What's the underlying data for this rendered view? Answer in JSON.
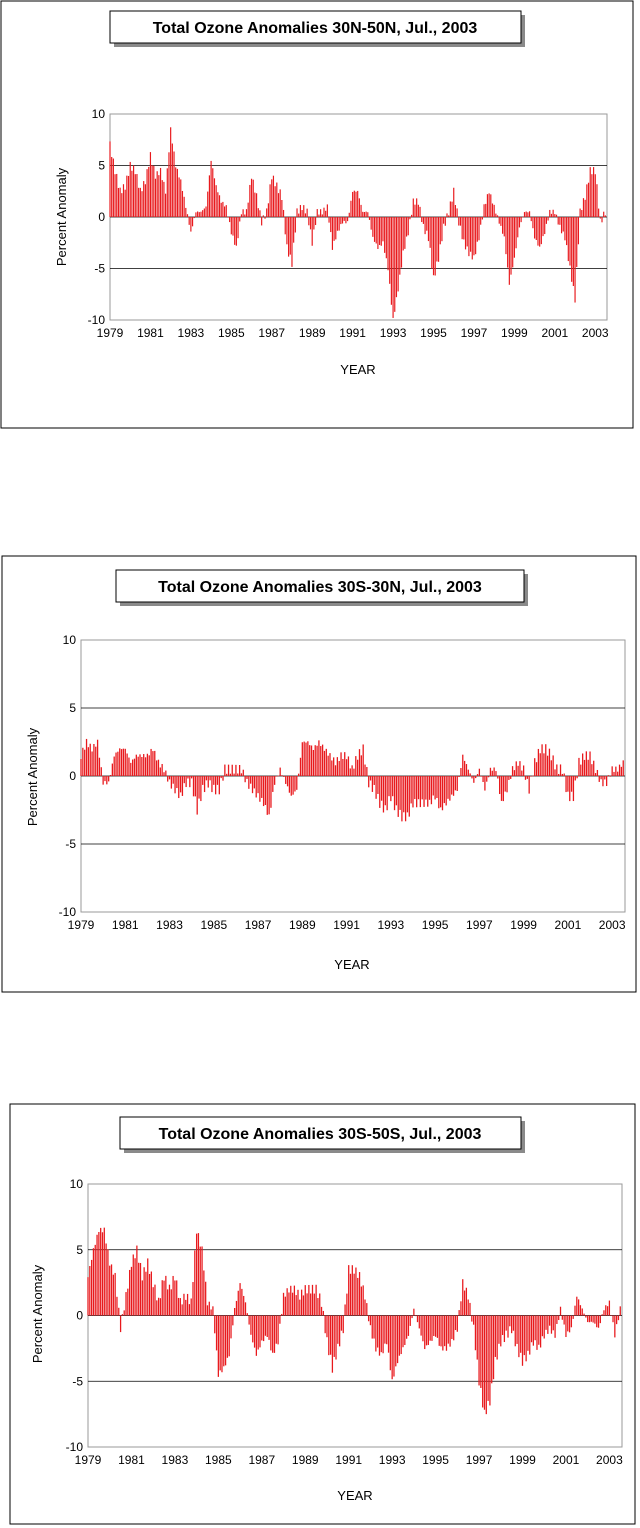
{
  "chart_data": [
    {
      "type": "bar",
      "title": "Total Ozone Anomalies 30N-50N,  Jul., 2003",
      "xlabel": "YEAR",
      "ylabel": "Percent Anomaly",
      "ylim": [
        -10,
        10
      ],
      "yticks": [
        10,
        5,
        0,
        -5,
        -10
      ],
      "xlim": [
        1979.0,
        2003.58
      ],
      "xticks": [
        1979,
        1981,
        1983,
        1985,
        1987,
        1989,
        1991,
        1993,
        1995,
        1997,
        1999,
        2001,
        2003
      ],
      "grid": true,
      "bar_color": "#e8191d",
      "series": [
        {
          "x": [
            1979.0,
            1979.25,
            1979.5,
            1979.75,
            1980.0,
            1980.25,
            1980.5,
            1980.75,
            1981.0,
            1981.25,
            1981.5,
            1981.75,
            1982.0,
            1982.25,
            1982.5,
            1982.75,
            1983.0,
            1983.25,
            1983.5,
            1983.75,
            1984.0,
            1984.25,
            1984.5,
            1984.75,
            1985.0,
            1985.25,
            1985.5,
            1985.75,
            1986.0,
            1986.25,
            1986.5,
            1986.75,
            1987.0,
            1987.25,
            1987.5,
            1987.75,
            1988.0,
            1988.25,
            1988.5,
            1988.75,
            1989.0,
            1989.25,
            1989.5,
            1989.75,
            1990.0,
            1990.25,
            1990.5,
            1990.75,
            1991.0,
            1991.25,
            1991.5,
            1991.75,
            1992.0,
            1992.25,
            1992.5,
            1992.75,
            1993.0,
            1993.25,
            1993.5,
            1993.75,
            1994.0,
            1994.25,
            1994.5,
            1994.75,
            1995.0,
            1995.25,
            1995.5,
            1995.75,
            1996.0,
            1996.25,
            1996.5,
            1996.75,
            1997.0,
            1997.25,
            1997.5,
            1997.75,
            1998.0,
            1998.25,
            1998.5,
            1998.75,
            1999.0,
            1999.25,
            1999.5,
            1999.75,
            2000.0,
            2000.25,
            2000.5,
            2000.75,
            2001.0,
            2001.25,
            2001.5,
            2001.75,
            2002.0,
            2002.25,
            2002.5,
            2002.75,
            2003.0,
            2003.25,
            2003.5
          ],
          "values": [
            7.0,
            4.5,
            2.5,
            3.0,
            5.0,
            4.5,
            2.5,
            3.5,
            6.0,
            4.0,
            4.5,
            2.5,
            8.5,
            5.0,
            3.5,
            1.0,
            -1.5,
            0.5,
            0.5,
            1.0,
            5.5,
            3.0,
            1.5,
            1.0,
            -1.5,
            -3.0,
            0.5,
            0.5,
            4.0,
            2.0,
            -0.5,
            0.5,
            4.0,
            3.0,
            2.0,
            -3.0,
            -4.5,
            0.5,
            1.0,
            0.5,
            -2.5,
            0.5,
            0.5,
            1.0,
            -3.0,
            -1.5,
            -0.5,
            -0.5,
            2.5,
            2.5,
            0.5,
            0.5,
            -2.0,
            -3.0,
            -2.5,
            -5.0,
            -10.0,
            -7.0,
            -3.5,
            -1.5,
            1.5,
            1.5,
            -1.0,
            -2.0,
            -6.0,
            -4.0,
            -1.0,
            0.5,
            2.5,
            -0.5,
            -2.5,
            -3.5,
            -4.0,
            -2.0,
            1.0,
            2.5,
            1.0,
            -0.5,
            -2.0,
            -6.5,
            -4.0,
            -1.0,
            0.5,
            0.5,
            -2.0,
            -3.0,
            -1.5,
            0.5,
            0.5,
            -1.0,
            -2.0,
            -5.0,
            -8.0,
            0.5,
            2.0,
            4.5,
            4.5,
            -0.5,
            0.5
          ]
        }
      ]
    },
    {
      "type": "bar",
      "title": "Total Ozone Anomalies 30S-30N, Jul., 2003",
      "xlabel": "YEAR",
      "ylabel": "Percent Anomaly",
      "ylim": [
        -10,
        10
      ],
      "yticks": [
        10,
        5,
        0,
        -5,
        -10
      ],
      "xlim": [
        1979.0,
        2003.58
      ],
      "xticks": [
        1979,
        1981,
        1983,
        1985,
        1987,
        1989,
        1991,
        1993,
        1995,
        1997,
        1999,
        2001,
        2003
      ],
      "grid": true,
      "bar_color": "#e8191d",
      "series": [
        {
          "x": [
            1979.0,
            1979.25,
            1979.5,
            1979.75,
            1980.0,
            1980.25,
            1980.5,
            1980.75,
            1981.0,
            1981.25,
            1981.5,
            1981.75,
            1982.0,
            1982.25,
            1982.5,
            1982.75,
            1983.0,
            1983.25,
            1983.5,
            1983.75,
            1984.0,
            1984.25,
            1984.5,
            1984.75,
            1985.0,
            1985.25,
            1985.5,
            1985.75,
            1986.0,
            1986.25,
            1986.5,
            1986.75,
            1987.0,
            1987.25,
            1987.5,
            1987.75,
            1988.0,
            1988.25,
            1988.5,
            1988.75,
            1989.0,
            1989.25,
            1989.5,
            1989.75,
            1990.0,
            1990.25,
            1990.5,
            1990.75,
            1991.0,
            1991.25,
            1991.5,
            1991.75,
            1992.0,
            1992.25,
            1992.5,
            1992.75,
            1993.0,
            1993.25,
            1993.5,
            1993.75,
            1994.0,
            1994.25,
            1994.5,
            1994.75,
            1995.0,
            1995.25,
            1995.5,
            1995.75,
            1996.0,
            1996.25,
            1996.5,
            1996.75,
            1997.0,
            1997.25,
            1997.5,
            1997.75,
            1998.0,
            1998.25,
            1998.5,
            1998.75,
            1999.0,
            1999.25,
            1999.5,
            1999.75,
            2000.0,
            2000.25,
            2000.5,
            2000.75,
            2001.0,
            2001.25,
            2001.5,
            2001.75,
            2002.0,
            2002.25,
            2002.5,
            2002.75,
            2003.0,
            2003.25,
            2003.5
          ],
          "values": [
            1.5,
            2.5,
            2.0,
            2.5,
            -0.5,
            -0.5,
            1.5,
            2.0,
            2.0,
            1.0,
            1.5,
            1.5,
            1.5,
            2.0,
            1.0,
            0.5,
            -0.5,
            -1.0,
            -1.5,
            -0.5,
            -0.5,
            -2.5,
            -1.0,
            -0.5,
            -1.0,
            -1.0,
            0.5,
            0.5,
            0.5,
            0.5,
            -0.5,
            -1.0,
            -1.5,
            -2.0,
            -3.0,
            -0.5,
            0.5,
            -0.5,
            -1.5,
            -1.0,
            2.5,
            2.5,
            2.0,
            2.5,
            2.0,
            1.5,
            1.0,
            1.5,
            1.5,
            0.5,
            1.5,
            2.0,
            -0.5,
            -1.0,
            -2.0,
            -2.5,
            -1.5,
            -2.5,
            -3.0,
            -3.0,
            -2.0,
            -2.0,
            -2.0,
            -2.0,
            -1.5,
            -2.5,
            -2.0,
            -1.5,
            -1.0,
            1.5,
            0.5,
            -0.5,
            0.5,
            -1.0,
            0.5,
            0.5,
            -2.0,
            -1.0,
            0.5,
            1.0,
            0.5,
            -1.0,
            1.0,
            2.0,
            2.0,
            1.5,
            0.5,
            0.5,
            -1.5,
            -1.5,
            1.0,
            1.5,
            1.5,
            0.5,
            -0.5,
            -0.5,
            0.5,
            0.5,
            1.0
          ]
        }
      ]
    },
    {
      "type": "bar",
      "title": "Total Ozone Anomalies 30S-50S,  Jul., 2003",
      "xlabel": "YEAR",
      "ylabel": "Percent Anomaly",
      "ylim": [
        -10,
        10
      ],
      "yticks": [
        10,
        5,
        0,
        -5,
        -10
      ],
      "xlim": [
        1979.0,
        2003.58
      ],
      "xticks": [
        1979,
        1981,
        1983,
        1985,
        1987,
        1989,
        1991,
        1993,
        1995,
        1997,
        1999,
        2001,
        2003
      ],
      "grid": true,
      "bar_color": "#e8191d",
      "series": [
        {
          "x": [
            1979.0,
            1979.25,
            1979.5,
            1979.75,
            1980.0,
            1980.25,
            1980.5,
            1980.75,
            1981.0,
            1981.25,
            1981.5,
            1981.75,
            1982.0,
            1982.25,
            1982.5,
            1982.75,
            1983.0,
            1983.25,
            1983.5,
            1983.75,
            1984.0,
            1984.25,
            1984.5,
            1984.75,
            1985.0,
            1985.25,
            1985.5,
            1985.75,
            1986.0,
            1986.25,
            1986.5,
            1986.75,
            1987.0,
            1987.25,
            1987.5,
            1987.75,
            1988.0,
            1988.25,
            1988.5,
            1988.75,
            1989.0,
            1989.25,
            1989.5,
            1989.75,
            1990.0,
            1990.25,
            1990.5,
            1990.75,
            1991.0,
            1991.25,
            1991.5,
            1991.75,
            1992.0,
            1992.25,
            1992.5,
            1992.75,
            1993.0,
            1993.25,
            1993.5,
            1993.75,
            1994.0,
            1994.25,
            1994.5,
            1994.75,
            1995.0,
            1995.25,
            1995.5,
            1995.75,
            1996.0,
            1996.25,
            1996.5,
            1996.75,
            1997.0,
            1997.25,
            1997.5,
            1997.75,
            1998.0,
            1998.25,
            1998.5,
            1998.75,
            1999.0,
            1999.25,
            1999.5,
            1999.75,
            2000.0,
            2000.25,
            2000.5,
            2000.75,
            2001.0,
            2001.25,
            2001.5,
            2001.75,
            2002.0,
            2002.25,
            2002.5,
            2002.75,
            2003.0,
            2003.25,
            2003.5
          ],
          "values": [
            3.0,
            5.0,
            6.5,
            6.5,
            4.0,
            3.0,
            -1.0,
            1.5,
            4.0,
            5.0,
            3.0,
            4.0,
            2.5,
            1.0,
            3.0,
            2.0,
            3.0,
            1.0,
            1.5,
            1.0,
            6.5,
            5.0,
            1.0,
            0.5,
            -4.5,
            -4.0,
            -3.0,
            0.5,
            2.5,
            1.0,
            -1.5,
            -3.0,
            -2.0,
            -1.5,
            -3.0,
            -2.0,
            1.5,
            2.0,
            2.0,
            1.5,
            2.0,
            2.0,
            2.0,
            1.0,
            -2.0,
            -4.0,
            -2.5,
            -1.0,
            3.5,
            3.5,
            3.0,
            1.5,
            -1.0,
            -2.5,
            -3.0,
            -2.0,
            -5.0,
            -3.5,
            -2.5,
            -1.5,
            0.5,
            -1.0,
            -2.5,
            -2.0,
            -1.5,
            -2.5,
            -2.5,
            -2.0,
            -1.0,
            2.5,
            1.5,
            -1.0,
            -5.0,
            -7.5,
            -6.5,
            -3.5,
            -2.0,
            -1.5,
            -1.0,
            -2.5,
            -3.5,
            -3.0,
            -2.0,
            -2.5,
            -1.5,
            -1.0,
            -1.5,
            0.5,
            -1.5,
            -1.0,
            1.5,
            0.5,
            -0.5,
            -0.5,
            -1.0,
            0.5,
            1.0,
            -1.5,
            0.5
          ]
        }
      ]
    }
  ]
}
